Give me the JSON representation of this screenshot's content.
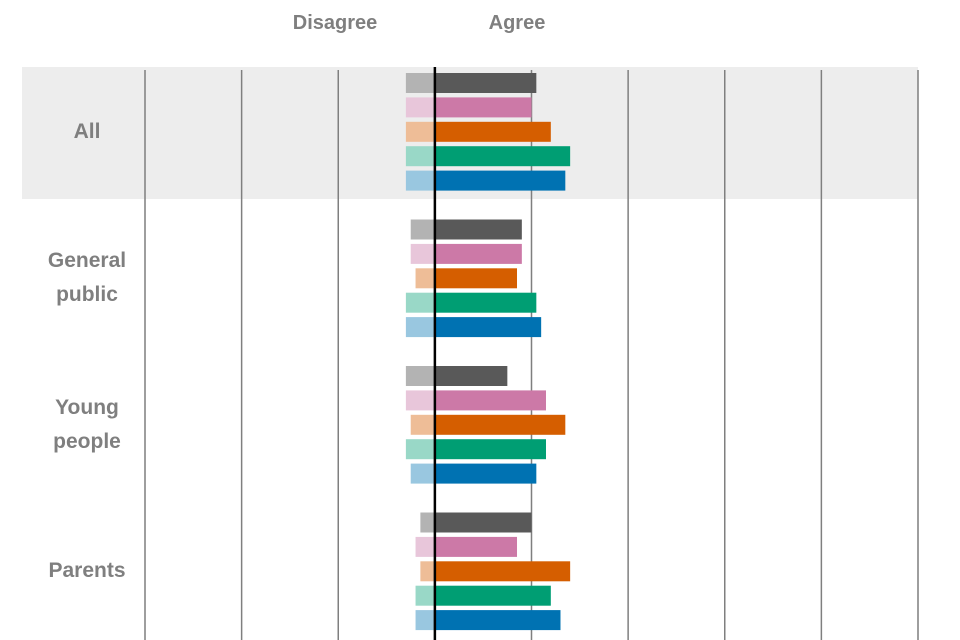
{
  "chart_data": {
    "type": "diverging_bar",
    "column_headers": [
      "Disagree",
      "Agree"
    ],
    "categories": [
      "All",
      "General public",
      "Young people",
      "Parents"
    ],
    "xlim": [
      -60,
      100
    ],
    "xticks": [
      -60,
      -40,
      -20,
      0,
      20,
      40,
      60,
      80,
      100
    ],
    "grid": true,
    "series": [
      {
        "color": "#595959",
        "light_color": "#b3b3b3",
        "agree": [
          21,
          18,
          15,
          20
        ],
        "disagree": [
          -6,
          -5,
          -6,
          -3
        ]
      },
      {
        "color": "#cc79a7",
        "light_color": "#e8c6da",
        "agree": [
          20,
          18,
          23,
          17
        ],
        "disagree": [
          -6,
          -5,
          -6,
          -4
        ]
      },
      {
        "color": "#d55e00",
        "light_color": "#eebd97",
        "agree": [
          24,
          17,
          27,
          28
        ],
        "disagree": [
          -6,
          -4,
          -5,
          -3
        ]
      },
      {
        "color": "#009e73",
        "light_color": "#99d8c7",
        "agree": [
          28,
          21,
          23,
          24
        ],
        "disagree": [
          -6,
          -6,
          -6,
          -4
        ]
      },
      {
        "color": "#0072b2",
        "light_color": "#99c7e0",
        "agree": [
          27,
          22,
          21,
          26
        ],
        "disagree": [
          -6,
          -6,
          -5,
          -4
        ]
      }
    ]
  }
}
